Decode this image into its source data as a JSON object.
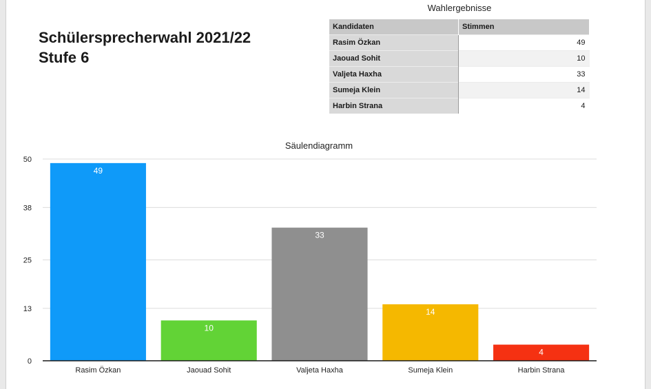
{
  "page": {
    "title_line1": "Schülersprecherwahl 2021/22",
    "title_line2": "Stufe 6"
  },
  "table": {
    "caption": "Wahlergebnisse",
    "headers": [
      "Kandidaten",
      "Stimmen"
    ],
    "rows": [
      {
        "name": "Rasim Özkan",
        "votes": "49"
      },
      {
        "name": "Jaouad Sohit",
        "votes": "10"
      },
      {
        "name": "Valjeta Haxha",
        "votes": "33"
      },
      {
        "name": "Sumeja Klein",
        "votes": "14"
      },
      {
        "name": "Harbin Strana",
        "votes": "4"
      }
    ]
  },
  "chart_data": {
    "type": "bar",
    "title": "Säulendiagramm",
    "categories": [
      "Rasim Özkan",
      "Jaouad Sohit",
      "Valjeta Haxha",
      "Sumeja Klein",
      "Harbin Strana"
    ],
    "values": [
      49,
      10,
      33,
      14,
      4
    ],
    "colors": [
      "#0f9af9",
      "#62d336",
      "#8f8f8f",
      "#f5b800",
      "#f53112"
    ],
    "yticks": [
      0,
      13,
      25,
      38,
      50
    ],
    "ylim": [
      0,
      50
    ],
    "xlabel": "",
    "ylabel": "",
    "grid": true,
    "data_labels": true
  }
}
